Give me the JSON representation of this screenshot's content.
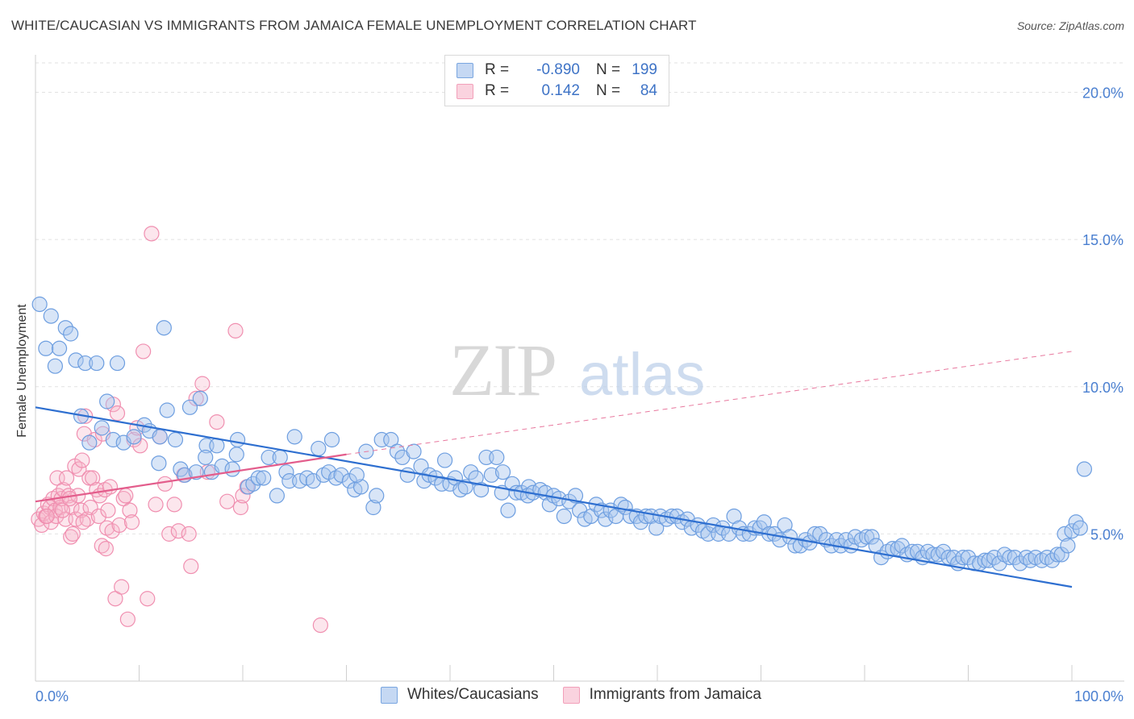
{
  "header": {
    "title": "WHITE/CAUCASIAN VS IMMIGRANTS FROM JAMAICA FEMALE UNEMPLOYMENT CORRELATION CHART",
    "source": "Source: ZipAtlas.com"
  },
  "watermark": {
    "zip": "ZIP",
    "atlas": "atlas"
  },
  "legend": {
    "rows": [
      {
        "r_label": "R =",
        "r_value": "-0.890",
        "n_label": "N =",
        "n_value": "199",
        "color": "#7aa6e0"
      },
      {
        "r_label": "R =",
        "r_value": "0.142",
        "n_label": "N =",
        "n_value": "84",
        "color": "#f2a0ba"
      }
    ]
  },
  "chart_data": {
    "type": "scatter",
    "title": "WHITE/CAUCASIAN VS IMMIGRANTS FROM JAMAICA FEMALE UNEMPLOYMENT CORRELATION CHART",
    "xlabel": "",
    "ylabel": "Female Unemployment",
    "xlim": [
      0,
      100
    ],
    "ylim": [
      0,
      21
    ],
    "x_tick_labels": [
      "0.0%",
      "100.0%"
    ],
    "y_ticks": [
      5,
      10,
      15,
      20
    ],
    "y_tick_labels": [
      "5.0%",
      "10.0%",
      "15.0%",
      "20.0%"
    ],
    "grid": true,
    "legend_position": "bottom-center",
    "series": [
      {
        "name": "Whites/Caucasians",
        "color": "#6d9ee0",
        "trend": {
          "x0": 0,
          "y0": 9.3,
          "x1": 100,
          "y1": 3.2
        },
        "points": [
          [
            0.4,
            12.8
          ],
          [
            1.5,
            12.4
          ],
          [
            1.0,
            11.3
          ],
          [
            2.3,
            11.3
          ],
          [
            2.9,
            12.0
          ],
          [
            3.4,
            11.8
          ],
          [
            1.9,
            10.7
          ],
          [
            3.9,
            10.9
          ],
          [
            4.8,
            10.8
          ],
          [
            5.9,
            10.8
          ],
          [
            7.9,
            10.8
          ],
          [
            12.4,
            12.0
          ],
          [
            4.4,
            9.0
          ],
          [
            5.2,
            8.1
          ],
          [
            6.4,
            8.6
          ],
          [
            6.9,
            9.5
          ],
          [
            7.5,
            8.2
          ],
          [
            8.5,
            8.1
          ],
          [
            9.5,
            8.3
          ],
          [
            10.5,
            8.7
          ],
          [
            11.0,
            8.5
          ],
          [
            12.0,
            8.3
          ],
          [
            12.7,
            9.2
          ],
          [
            13.5,
            8.2
          ],
          [
            14.9,
            9.3
          ],
          [
            15.9,
            9.6
          ],
          [
            16.5,
            8.0
          ],
          [
            17.5,
            8.0
          ],
          [
            19.5,
            8.2
          ],
          [
            11.9,
            7.4
          ],
          [
            14.0,
            7.2
          ],
          [
            14.4,
            7.0
          ],
          [
            15.5,
            7.1
          ],
          [
            16.4,
            7.6
          ],
          [
            17.0,
            7.1
          ],
          [
            18.0,
            7.3
          ],
          [
            19.0,
            7.2
          ],
          [
            19.4,
            7.7
          ],
          [
            20.5,
            6.6
          ],
          [
            21.0,
            6.7
          ],
          [
            21.5,
            6.9
          ],
          [
            22.0,
            6.9
          ],
          [
            22.5,
            7.6
          ],
          [
            23.3,
            6.3
          ],
          [
            23.6,
            7.6
          ],
          [
            24.2,
            7.1
          ],
          [
            24.5,
            6.8
          ],
          [
            25.0,
            8.3
          ],
          [
            25.5,
            6.8
          ],
          [
            26.2,
            6.9
          ],
          [
            26.8,
            6.8
          ],
          [
            27.3,
            7.9
          ],
          [
            27.8,
            7.0
          ],
          [
            28.3,
            7.1
          ],
          [
            28.6,
            8.2
          ],
          [
            29.0,
            6.9
          ],
          [
            29.5,
            7.0
          ],
          [
            30.3,
            6.8
          ],
          [
            30.8,
            6.5
          ],
          [
            31.4,
            6.6
          ],
          [
            31.0,
            7.0
          ],
          [
            31.9,
            7.8
          ],
          [
            32.6,
            5.9
          ],
          [
            32.9,
            6.3
          ],
          [
            33.4,
            8.2
          ],
          [
            34.3,
            8.2
          ],
          [
            34.9,
            7.8
          ],
          [
            35.4,
            7.6
          ],
          [
            35.9,
            7.0
          ],
          [
            36.5,
            7.8
          ],
          [
            37.2,
            7.3
          ],
          [
            37.5,
            6.8
          ],
          [
            38.0,
            7.0
          ],
          [
            38.6,
            6.9
          ],
          [
            39.2,
            6.7
          ],
          [
            39.5,
            7.5
          ],
          [
            40.0,
            6.7
          ],
          [
            40.5,
            6.9
          ],
          [
            41.0,
            6.5
          ],
          [
            41.5,
            6.6
          ],
          [
            42.0,
            7.1
          ],
          [
            42.5,
            6.9
          ],
          [
            43.0,
            6.5
          ],
          [
            43.5,
            7.6
          ],
          [
            44.0,
            7.0
          ],
          [
            44.5,
            7.6
          ],
          [
            45.1,
            7.1
          ],
          [
            45.0,
            6.4
          ],
          [
            45.6,
            5.8
          ],
          [
            46.0,
            6.7
          ],
          [
            46.4,
            6.4
          ],
          [
            46.9,
            6.4
          ],
          [
            47.6,
            6.6
          ],
          [
            47.5,
            6.3
          ],
          [
            48.0,
            6.4
          ],
          [
            48.7,
            6.5
          ],
          [
            49.2,
            6.4
          ],
          [
            49.6,
            6.0
          ],
          [
            50.0,
            6.3
          ],
          [
            50.5,
            6.2
          ],
          [
            51.0,
            5.6
          ],
          [
            51.5,
            6.1
          ],
          [
            52.1,
            6.3
          ],
          [
            52.5,
            5.8
          ],
          [
            53.0,
            5.5
          ],
          [
            53.6,
            5.6
          ],
          [
            54.1,
            6.0
          ],
          [
            54.6,
            5.8
          ],
          [
            55.0,
            5.5
          ],
          [
            55.5,
            5.8
          ],
          [
            56.0,
            5.6
          ],
          [
            56.5,
            6.0
          ],
          [
            56.9,
            5.9
          ],
          [
            57.4,
            5.6
          ],
          [
            58.0,
            5.6
          ],
          [
            58.4,
            5.4
          ],
          [
            58.9,
            5.6
          ],
          [
            59.4,
            5.6
          ],
          [
            59.9,
            5.2
          ],
          [
            60.3,
            5.6
          ],
          [
            60.9,
            5.5
          ],
          [
            61.4,
            5.6
          ],
          [
            61.9,
            5.6
          ],
          [
            62.4,
            5.4
          ],
          [
            62.9,
            5.5
          ],
          [
            63.3,
            5.2
          ],
          [
            63.9,
            5.3
          ],
          [
            64.4,
            5.1
          ],
          [
            64.9,
            5.0
          ],
          [
            65.4,
            5.3
          ],
          [
            65.9,
            5.0
          ],
          [
            66.3,
            5.2
          ],
          [
            66.9,
            5.0
          ],
          [
            67.4,
            5.6
          ],
          [
            67.9,
            5.2
          ],
          [
            68.3,
            5.0
          ],
          [
            68.9,
            5.0
          ],
          [
            69.4,
            5.2
          ],
          [
            69.9,
            5.2
          ],
          [
            70.3,
            5.4
          ],
          [
            70.8,
            5.0
          ],
          [
            71.3,
            5.0
          ],
          [
            71.8,
            4.8
          ],
          [
            72.3,
            5.3
          ],
          [
            72.8,
            4.9
          ],
          [
            73.3,
            4.6
          ],
          [
            73.8,
            4.6
          ],
          [
            74.3,
            4.8
          ],
          [
            74.7,
            4.7
          ],
          [
            75.2,
            5.0
          ],
          [
            75.7,
            5.0
          ],
          [
            76.3,
            4.8
          ],
          [
            76.8,
            4.6
          ],
          [
            77.3,
            4.8
          ],
          [
            77.7,
            4.6
          ],
          [
            78.2,
            4.8
          ],
          [
            78.7,
            4.6
          ],
          [
            79.1,
            4.9
          ],
          [
            79.7,
            4.8
          ],
          [
            80.2,
            4.9
          ],
          [
            80.7,
            4.9
          ],
          [
            81.1,
            4.6
          ],
          [
            81.6,
            4.2
          ],
          [
            82.2,
            4.4
          ],
          [
            82.7,
            4.5
          ],
          [
            83.2,
            4.5
          ],
          [
            83.6,
            4.6
          ],
          [
            84.1,
            4.3
          ],
          [
            84.6,
            4.4
          ],
          [
            85.1,
            4.4
          ],
          [
            85.6,
            4.2
          ],
          [
            86.1,
            4.4
          ],
          [
            86.6,
            4.3
          ],
          [
            87.1,
            4.3
          ],
          [
            87.6,
            4.4
          ],
          [
            88.1,
            4.2
          ],
          [
            88.6,
            4.2
          ],
          [
            89.0,
            4.0
          ],
          [
            89.5,
            4.2
          ],
          [
            90.0,
            4.2
          ],
          [
            90.6,
            4.0
          ],
          [
            91.1,
            4.0
          ],
          [
            91.6,
            4.1
          ],
          [
            92.0,
            4.1
          ],
          [
            92.5,
            4.2
          ],
          [
            93.0,
            4.0
          ],
          [
            93.5,
            4.3
          ],
          [
            94.0,
            4.2
          ],
          [
            94.5,
            4.2
          ],
          [
            95.0,
            4.0
          ],
          [
            95.6,
            4.2
          ],
          [
            96.0,
            4.1
          ],
          [
            96.5,
            4.2
          ],
          [
            97.1,
            4.1
          ],
          [
            97.6,
            4.2
          ],
          [
            98.1,
            4.1
          ],
          [
            98.6,
            4.3
          ],
          [
            99.0,
            4.3
          ],
          [
            99.3,
            5.0
          ],
          [
            99.6,
            4.6
          ],
          [
            100.0,
            5.1
          ],
          [
            100.4,
            5.4
          ],
          [
            100.8,
            5.2
          ],
          [
            101.2,
            7.2
          ]
        ]
      },
      {
        "name": "Immigrants from Jamaica",
        "color": "#f08fb0",
        "trend": {
          "x0": 0,
          "y0": 6.1,
          "x1": 30,
          "y1": 7.7,
          "dash_to_x": 100,
          "dash_to_y": 11.2
        },
        "points": [
          [
            0.3,
            5.5
          ],
          [
            0.6,
            5.3
          ],
          [
            0.8,
            5.7
          ],
          [
            1.0,
            5.6
          ],
          [
            1.2,
            6.0
          ],
          [
            1.4,
            5.9
          ],
          [
            1.5,
            5.4
          ],
          [
            1.7,
            6.2
          ],
          [
            1.9,
            5.8
          ],
          [
            2.0,
            5.6
          ],
          [
            2.1,
            6.9
          ],
          [
            2.2,
            6.3
          ],
          [
            2.4,
            5.9
          ],
          [
            2.5,
            6.2
          ],
          [
            2.7,
            6.5
          ],
          [
            2.9,
            5.5
          ],
          [
            3.0,
            6.9
          ],
          [
            3.2,
            6.3
          ],
          [
            3.4,
            4.9
          ],
          [
            3.5,
            5.9
          ],
          [
            3.6,
            5.0
          ],
          [
            3.8,
            7.3
          ],
          [
            3.9,
            5.5
          ],
          [
            4.1,
            6.3
          ],
          [
            4.2,
            7.2
          ],
          [
            4.4,
            5.8
          ],
          [
            4.5,
            7.5
          ],
          [
            4.7,
            8.4
          ],
          [
            4.8,
            9.0
          ],
          [
            5.0,
            5.5
          ],
          [
            5.2,
            6.9
          ],
          [
            5.3,
            5.9
          ],
          [
            5.5,
            6.9
          ],
          [
            5.7,
            8.2
          ],
          [
            5.9,
            6.5
          ],
          [
            6.1,
            5.6
          ],
          [
            6.2,
            6.3
          ],
          [
            6.4,
            4.6
          ],
          [
            6.5,
            8.4
          ],
          [
            6.7,
            6.5
          ],
          [
            6.9,
            5.2
          ],
          [
            7.0,
            5.8
          ],
          [
            7.2,
            6.6
          ],
          [
            7.4,
            5.1
          ],
          [
            7.5,
            9.4
          ],
          [
            7.7,
            2.8
          ],
          [
            7.9,
            9.1
          ],
          [
            8.1,
            5.3
          ],
          [
            8.3,
            3.2
          ],
          [
            8.5,
            6.2
          ],
          [
            8.7,
            6.3
          ],
          [
            8.9,
            2.1
          ],
          [
            9.1,
            5.8
          ],
          [
            9.3,
            5.4
          ],
          [
            9.5,
            8.2
          ],
          [
            9.8,
            8.6
          ],
          [
            10.1,
            8.0
          ],
          [
            10.4,
            11.2
          ],
          [
            10.8,
            2.8
          ],
          [
            11.2,
            15.2
          ],
          [
            11.6,
            6.0
          ],
          [
            12.0,
            8.3
          ],
          [
            12.5,
            6.7
          ],
          [
            12.9,
            5.0
          ],
          [
            13.4,
            6.0
          ],
          [
            13.8,
            5.1
          ],
          [
            14.3,
            7.0
          ],
          [
            14.8,
            5.0
          ],
          [
            15.0,
            3.9
          ],
          [
            15.5,
            9.6
          ],
          [
            16.1,
            10.1
          ],
          [
            16.6,
            7.1
          ],
          [
            17.5,
            8.8
          ],
          [
            18.5,
            6.1
          ],
          [
            19.3,
            11.9
          ],
          [
            19.8,
            5.9
          ],
          [
            20.0,
            6.3
          ],
          [
            20.4,
            6.6
          ],
          [
            27.5,
            1.9
          ],
          [
            1.1,
            5.6
          ],
          [
            2.6,
            5.8
          ],
          [
            3.3,
            6.2
          ],
          [
            4.6,
            5.4
          ],
          [
            6.8,
            4.5
          ]
        ]
      }
    ]
  }
}
